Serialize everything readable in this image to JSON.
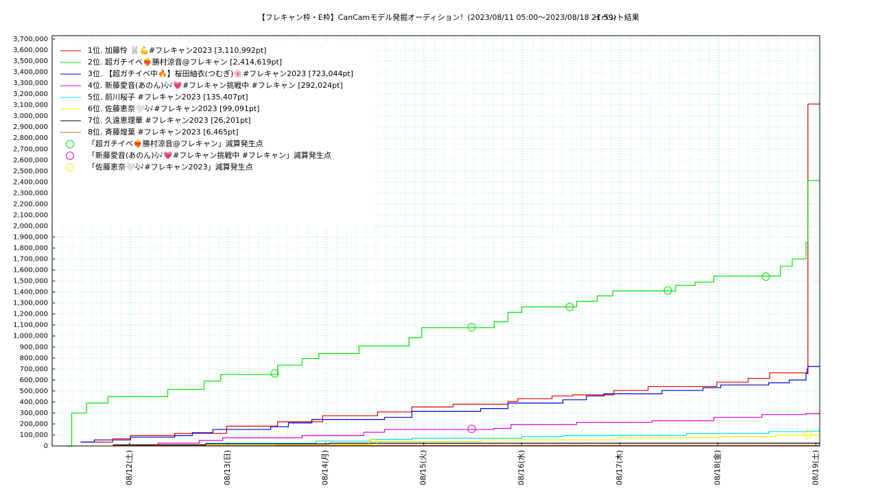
{
  "chart_data": {
    "type": "line",
    "step": true,
    "title": "【フレキャン枠・E枠】CanCamモデル発掘オーディション！(2023/08/11 05:00〜2023/08/18 21:59)",
    "subtitle": "イベント結果",
    "xlim": [
      11.21,
      19.04
    ],
    "xticks": [
      {
        "value": 12,
        "label": "08/12(土)"
      },
      {
        "value": 13,
        "label": "08/13(日)"
      },
      {
        "value": 14,
        "label": "08/14(月)"
      },
      {
        "value": 15,
        "label": "08/15(火)"
      },
      {
        "value": 16,
        "label": "08/16(水)"
      },
      {
        "value": 17,
        "label": "08/17(木)"
      },
      {
        "value": 18,
        "label": "08/18(金)"
      },
      {
        "value": 19,
        "label": "08/19(土)"
      }
    ],
    "ylim": [
      0,
      3700000
    ],
    "yticks": [
      0,
      {
        "value": 100000,
        "label": "100,000"
      },
      {
        "value": 200000,
        "label": "200,000"
      },
      {
        "value": 300000,
        "label": "300,000"
      },
      {
        "value": 400000,
        "label": "400,000"
      },
      {
        "value": 500000,
        "label": "500,000"
      },
      {
        "value": 600000,
        "label": "600,000"
      },
      {
        "value": 700000,
        "label": "700,000"
      },
      {
        "value": 800000,
        "label": "800,000"
      },
      {
        "value": 900000,
        "label": "900,000"
      },
      {
        "value": 1000000,
        "label": "1,000,000"
      },
      {
        "value": 1100000,
        "label": "1,100,000"
      },
      {
        "value": 1200000,
        "label": "1,200,000"
      },
      {
        "value": 1300000,
        "label": "1,300,000"
      },
      {
        "value": 1400000,
        "label": "1,400,000"
      },
      {
        "value": 1500000,
        "label": "1,500,000"
      },
      {
        "value": 1600000,
        "label": "1,600,000"
      },
      {
        "value": 1700000,
        "label": "1,700,000"
      },
      {
        "value": 1800000,
        "label": "1,800,000"
      },
      {
        "value": 1900000,
        "label": "1,900,000"
      },
      {
        "value": 2000000,
        "label": "2,000,000"
      },
      {
        "value": 2100000,
        "label": "2,100,000"
      },
      {
        "value": 2200000,
        "label": "2,200,000"
      },
      {
        "value": 2300000,
        "label": "2,300,000"
      },
      {
        "value": 2400000,
        "label": "2,400,000"
      },
      {
        "value": 2500000,
        "label": "2,500,000"
      },
      {
        "value": 2600000,
        "label": "2,600,000"
      },
      {
        "value": 2700000,
        "label": "2,700,000"
      },
      {
        "value": 2800000,
        "label": "2,800,000"
      },
      {
        "value": 2900000,
        "label": "2,900,000"
      },
      {
        "value": 3000000,
        "label": "3,000,000"
      },
      {
        "value": 3100000,
        "label": "3,100,000"
      },
      {
        "value": 3200000,
        "label": "3,200,000"
      },
      {
        "value": 3300000,
        "label": "3,300,000"
      },
      {
        "value": 3400000,
        "label": "3,400,000"
      },
      {
        "value": 3500000,
        "label": "3,500,000"
      },
      {
        "value": 3600000,
        "label": "3,600,000"
      },
      {
        "value": 3700000,
        "label": "3,700,000"
      }
    ],
    "grid": true,
    "legend": "upper left",
    "series": [
      {
        "name": "1位. 加藤怜 🐰💪#フレキャン2023 [3,110,992pt]",
        "color": "#e00000",
        "style": "step",
        "x": [
          11.5,
          11.83,
          12.01,
          12.46,
          12.99,
          13.51,
          13.97,
          14.53,
          14.88,
          15.3,
          15.86,
          15.96,
          16.31,
          16.52,
          16.94,
          17.29,
          17.99,
          18.31,
          18.53,
          18.91,
          18.92,
          19.04
        ],
        "values": [
          35000,
          65000,
          95000,
          115000,
          180000,
          220000,
          275000,
          310000,
          355000,
          380000,
          405000,
          430000,
          455000,
          465000,
          505000,
          540000,
          580000,
          615000,
          665000,
          700000,
          3110000,
          3110992
        ]
      },
      {
        "name": "2位. 超ガチイベ❤️‍🔥勝村涼音@フレキャン [2,414,619pt]",
        "color": "#00e000",
        "style": "step",
        "x": [
          11.36,
          11.41,
          11.56,
          11.78,
          12.39,
          12.76,
          12.93,
          13.51,
          13.76,
          13.93,
          14.34,
          14.85,
          14.98,
          15.72,
          15.86,
          16.0,
          16.56,
          16.77,
          16.93,
          17.57,
          17.77,
          17.96,
          18.64,
          18.76,
          18.9,
          18.92,
          19.04
        ],
        "values": [
          0,
          300000,
          390000,
          450000,
          515000,
          590000,
          650000,
          735000,
          795000,
          840000,
          910000,
          985000,
          1075000,
          1130000,
          1215000,
          1265000,
          1315000,
          1365000,
          1410000,
          1460000,
          1490000,
          1545000,
          1635000,
          1700000,
          1850000,
          2415000,
          2414619
        ]
      },
      {
        "name": "3位. 【超ガチイベ中🔥】桜田紬衣(つむぎ)🌸#フレキャン2023 [723,044pt]",
        "color": "#0000d0",
        "style": "step",
        "x": [
          11.5,
          11.64,
          12.01,
          12.46,
          12.64,
          12.85,
          13.44,
          13.62,
          13.86,
          14.6,
          14.88,
          15.58,
          15.86,
          16.42,
          16.66,
          16.84,
          17.43,
          17.85,
          18.03,
          18.52,
          18.73,
          18.9,
          18.92,
          19.04
        ],
        "values": [
          35000,
          55000,
          80000,
          95000,
          120000,
          150000,
          175000,
          210000,
          240000,
          260000,
          315000,
          340000,
          390000,
          420000,
          455000,
          475000,
          505000,
          530000,
          555000,
          575000,
          600000,
          660000,
          723000,
          723044
        ]
      },
      {
        "name": "4位. 新藤愛音(あのん)🎶💗#フレキャン挑戦中 #フレキャン [292,024pt]",
        "color": "#e000e0",
        "style": "step",
        "x": [
          11.83,
          12.29,
          12.71,
          12.95,
          13.76,
          14.39,
          14.6,
          15.72,
          15.89,
          16.56,
          17.33,
          17.96,
          18.45,
          18.9,
          19.04
        ],
        "values": [
          5000,
          25000,
          50000,
          75000,
          95000,
          125000,
          150000,
          160000,
          195000,
          215000,
          230000,
          260000,
          285000,
          295000,
          292024
        ]
      },
      {
        "name": "5位. 前川桜子 #フレキャン2023 [135,407pt]",
        "color": "#00e0e0",
        "style": "step",
        "x": [
          11.83,
          12.78,
          13.9,
          14.46,
          14.88,
          16.0,
          16.42,
          17.68,
          18.52,
          18.92,
          19.04
        ],
        "values": [
          5000,
          25000,
          45000,
          60000,
          70000,
          85000,
          95000,
          115000,
          130000,
          135000,
          135407
        ]
      },
      {
        "name": "6位. 佐藤恵奈🤍🎶#フレキャン2023 [99,091pt]",
        "color": "#f0f000",
        "style": "step",
        "x": [
          12.78,
          14.46,
          15.58,
          16.98,
          18.03,
          18.59,
          19.04
        ],
        "values": [
          15000,
          40000,
          55000,
          75000,
          85000,
          100000,
          99091
        ]
      },
      {
        "name": "7位. 久遠恵理華 #フレキャン2023 [26,201pt]",
        "color": "#000000",
        "style": "step",
        "x": [
          11.83,
          12.78,
          14.04,
          19.04
        ],
        "values": [
          10000,
          20000,
          25000,
          26201
        ]
      },
      {
        "name": "8位. 斉藤煌葉 #フレキャン2023 [6,465pt]",
        "color": "#e06020",
        "style": "step",
        "x": [
          11.83,
          13.48,
          19.04
        ],
        "values": [
          3000,
          6000,
          6465
        ]
      },
      {
        "name": "「超ガチイベ❤️‍🔥勝村涼音@フレキャン」減算発生点",
        "color": "#00e000",
        "style": "circle",
        "x": [
          13.48,
          15.49,
          16.49,
          17.49,
          18.49
        ],
        "values": [
          660000,
          1080000,
          1265000,
          1415000,
          1540000
        ]
      },
      {
        "name": "「新藤愛音(あのん)🎶💗#フレキャン挑戦中 #フレキャン」減算発生点",
        "color": "#e000e0",
        "style": "circle",
        "x": [
          15.49
        ],
        "values": [
          155000
        ]
      },
      {
        "name": "「佐藤恵奈🤍🎶#フレキャン2023」減算発生点",
        "color": "#f0f000",
        "style": "circle",
        "x": [
          14.48,
          18.92
        ],
        "values": [
          30000,
          105000
        ]
      }
    ]
  }
}
